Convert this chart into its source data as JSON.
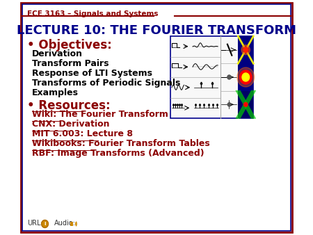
{
  "bg_color": "#ffffff",
  "outer_border_color": "#8B0000",
  "inner_border_color": "#00008B",
  "header_text": "ECE 3163 – Signals and Systems",
  "title_line1": "LECTURE 10: THE FOURIER TRANSFORM",
  "title_color": "#00008B",
  "objectives_label": "• Objectives:",
  "objectives_color": "#8B0000",
  "objectives_items": [
    "Derivation",
    "Transform Pairs",
    "Response of LTI Systems",
    "Transforms of Periodic Signals",
    "Examples"
  ],
  "resources_label": "• Resources:",
  "resources_color": "#8B0000",
  "resources_items": [
    "Wiki: The Fourier Transform",
    "CNX: Derivation",
    "MIT 6.003: Lecture 8",
    "Wikibooks: Fourier Transform Tables",
    "RBF: Image Transforms (Advanced)"
  ],
  "resources_color_link": "#8B0000",
  "url_label": "URL:",
  "audio_label": "Audio:",
  "items_font_color": "#000000",
  "header_font_color": "#8B0000",
  "objectives_font_size": 9,
  "title_font_size": 13
}
